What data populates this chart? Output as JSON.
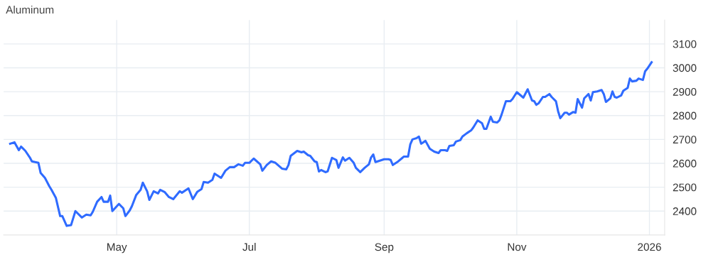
{
  "chart_data": {
    "type": "line",
    "title": "Aluminum",
    "x": [
      "2025-03-13",
      "2025-03-15",
      "2025-03-17",
      "2025-03-18",
      "2025-03-20",
      "2025-03-22",
      "2025-03-23",
      "2025-03-26",
      "2025-03-27",
      "2025-03-29",
      "2025-03-31",
      "2025-04-01",
      "2025-04-03",
      "2025-04-05",
      "2025-04-06",
      "2025-04-08",
      "2025-04-10",
      "2025-04-12",
      "2025-04-15",
      "2025-04-17",
      "2025-04-19",
      "2025-04-20",
      "2025-04-22",
      "2025-04-24",
      "2025-04-25",
      "2025-04-27",
      "2025-04-28",
      "2025-04-29",
      "2025-05-02",
      "2025-05-04",
      "2025-05-05",
      "2025-05-07",
      "2025-05-08",
      "2025-05-10",
      "2025-05-12",
      "2025-05-13",
      "2025-05-15",
      "2025-05-16",
      "2025-05-18",
      "2025-05-20",
      "2025-05-21",
      "2025-05-23",
      "2025-05-25",
      "2025-05-27",
      "2025-05-30",
      "2025-05-31",
      "2025-06-03",
      "2025-06-05",
      "2025-06-07",
      "2025-06-09",
      "2025-06-10",
      "2025-06-12",
      "2025-06-14",
      "2025-06-15",
      "2025-06-18",
      "2025-06-20",
      "2025-06-22",
      "2025-06-24",
      "2025-06-26",
      "2025-06-28",
      "2025-06-29",
      "2025-07-01",
      "2025-07-03",
      "2025-07-06",
      "2025-07-07",
      "2025-07-09",
      "2025-07-11",
      "2025-07-13",
      "2025-07-16",
      "2025-07-18",
      "2025-07-19",
      "2025-07-20",
      "2025-07-23",
      "2025-07-25",
      "2025-07-26",
      "2025-07-28",
      "2025-07-29",
      "2025-07-31",
      "2025-08-01",
      "2025-08-02",
      "2025-08-03",
      "2025-08-05",
      "2025-08-06",
      "2025-08-08",
      "2025-08-10",
      "2025-08-11",
      "2025-08-13",
      "2025-08-14",
      "2025-08-16",
      "2025-08-18",
      "2025-08-19",
      "2025-08-21",
      "2025-08-23",
      "2025-08-25",
      "2025-08-26",
      "2025-08-27",
      "2025-08-28",
      "2025-08-30",
      "2025-09-01",
      "2025-09-03",
      "2025-09-04",
      "2025-09-05",
      "2025-09-07",
      "2025-09-09",
      "2025-09-10",
      "2025-09-12",
      "2025-09-13",
      "2025-09-14",
      "2025-09-16",
      "2025-09-17",
      "2025-09-18",
      "2025-09-20",
      "2025-09-22",
      "2025-09-24",
      "2025-09-26",
      "2025-09-27",
      "2025-09-29",
      "2025-09-30",
      "2025-10-01",
      "2025-10-03",
      "2025-10-04",
      "2025-10-06",
      "2025-10-07",
      "2025-10-09",
      "2025-10-11",
      "2025-10-12",
      "2025-10-14",
      "2025-10-16",
      "2025-10-17",
      "2025-10-18",
      "2025-10-20",
      "2025-10-21",
      "2025-10-23",
      "2025-10-24",
      "2025-10-25",
      "2025-10-27",
      "2025-10-29",
      "2025-10-30",
      "2025-11-01",
      "2025-11-04",
      "2025-11-06",
      "2025-11-08",
      "2025-11-09",
      "2025-11-10",
      "2025-11-11",
      "2025-11-13",
      "2025-11-14",
      "2025-11-16",
      "2025-11-17",
      "2025-11-19",
      "2025-11-20",
      "2025-11-21",
      "2025-11-23",
      "2025-11-24",
      "2025-11-25",
      "2025-11-27",
      "2025-11-28",
      "2025-11-29",
      "2025-12-01",
      "2025-12-02",
      "2025-12-04",
      "2025-12-05",
      "2025-12-06",
      "2025-12-08",
      "2025-12-10",
      "2025-12-11",
      "2025-12-12",
      "2025-12-14",
      "2025-12-15",
      "2025-12-16",
      "2025-12-17",
      "2025-12-19",
      "2025-12-20",
      "2025-12-22",
      "2025-12-23",
      "2025-12-24",
      "2025-12-26",
      "2025-12-27",
      "2025-12-29",
      "2025-12-30",
      "2025-12-31",
      "2026-01-02"
    ],
    "series": [
      {
        "color": "#2f6bff",
        "values": [
          2682,
          2688,
          2655,
          2670,
          2652,
          2625,
          2608,
          2602,
          2560,
          2539,
          2504,
          2489,
          2456,
          2379,
          2379,
          2338,
          2341,
          2400,
          2373,
          2385,
          2382,
          2397,
          2439,
          2459,
          2439,
          2439,
          2465,
          2400,
          2430,
          2412,
          2379,
          2403,
          2421,
          2468,
          2489,
          2519,
          2483,
          2447,
          2483,
          2474,
          2489,
          2480,
          2459,
          2450,
          2483,
          2477,
          2495,
          2450,
          2480,
          2492,
          2522,
          2519,
          2531,
          2557,
          2539,
          2569,
          2584,
          2584,
          2596,
          2590,
          2602,
          2602,
          2620,
          2596,
          2569,
          2593,
          2608,
          2602,
          2578,
          2575,
          2593,
          2631,
          2652,
          2646,
          2649,
          2634,
          2631,
          2608,
          2605,
          2566,
          2572,
          2563,
          2566,
          2623,
          2614,
          2581,
          2625,
          2611,
          2623,
          2602,
          2581,
          2563,
          2581,
          2596,
          2625,
          2637,
          2605,
          2611,
          2617,
          2617,
          2614,
          2593,
          2605,
          2620,
          2628,
          2628,
          2679,
          2700,
          2706,
          2712,
          2682,
          2694,
          2661,
          2649,
          2643,
          2655,
          2655,
          2652,
          2673,
          2676,
          2691,
          2697,
          2712,
          2726,
          2738,
          2750,
          2780,
          2768,
          2744,
          2744,
          2795,
          2774,
          2771,
          2780,
          2804,
          2860,
          2860,
          2869,
          2898,
          2875,
          2910,
          2863,
          2860,
          2845,
          2851,
          2878,
          2878,
          2890,
          2878,
          2860,
          2818,
          2789,
          2812,
          2812,
          2804,
          2815,
          2812,
          2869,
          2833,
          2872,
          2890,
          2863,
          2898,
          2901,
          2907,
          2890,
          2857,
          2872,
          2901,
          2878,
          2875,
          2884,
          2904,
          2916,
          2955,
          2943,
          2946,
          2955,
          2949,
          2985,
          2996,
          3023
        ]
      }
    ],
    "xlim": [
      "2025-03-10",
      "2026-01-08"
    ],
    "xticks": [
      {
        "value": "2025-05-01",
        "label": "May"
      },
      {
        "value": "2025-07-01",
        "label": "Jul"
      },
      {
        "value": "2025-09-01",
        "label": "Sep"
      },
      {
        "value": "2025-11-01",
        "label": "Nov"
      },
      {
        "value": "2026-01-01",
        "label": "2026"
      }
    ],
    "ylim": [
      2300,
      3200
    ],
    "yticks": [
      2400,
      2500,
      2600,
      2700,
      2800,
      2900,
      3000,
      3100
    ],
    "grid": true,
    "line_style": "solid"
  }
}
